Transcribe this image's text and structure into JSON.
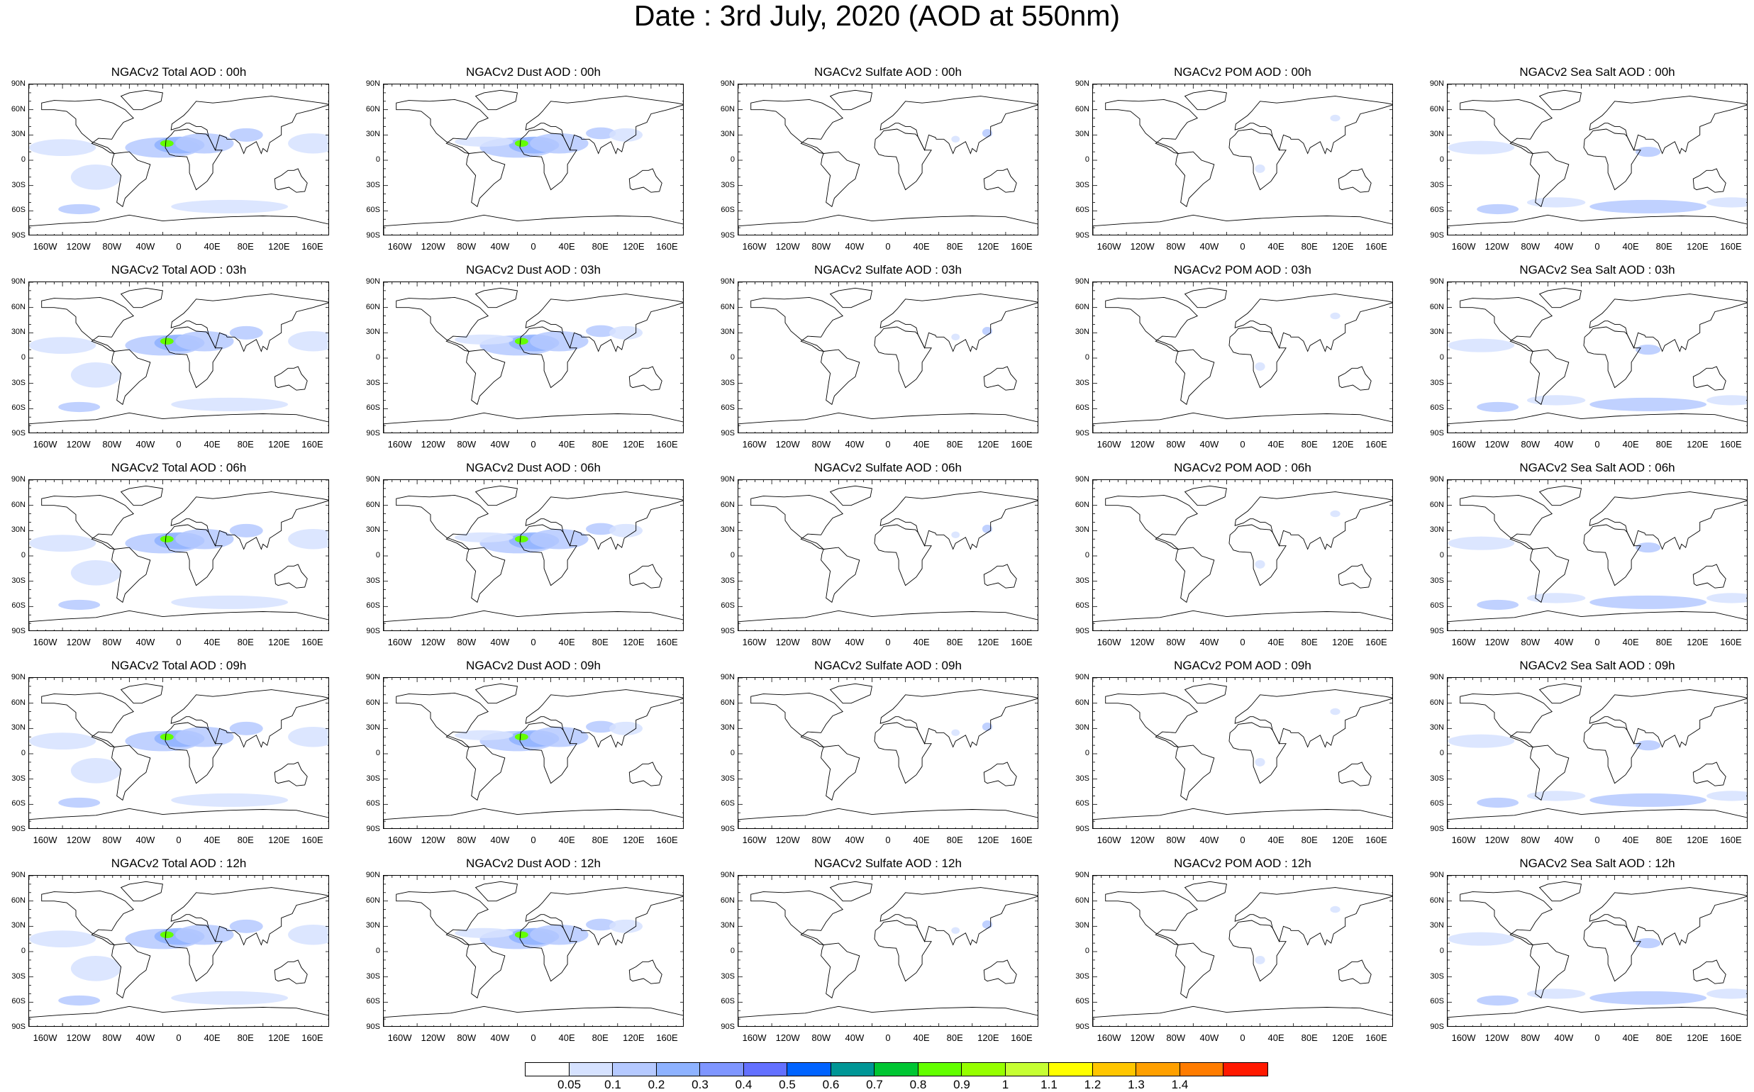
{
  "title": "Date : 3rd July, 2020 (AOD at 550nm)",
  "panels": [
    [
      "NGACv2 Total AOD : 00h",
      "NGACv2 Dust AOD : 00h",
      "NGACv2 Sulfate AOD : 00h",
      "NGACv2 POM AOD : 00h",
      "NGACv2 Sea Salt AOD : 00h"
    ],
    [
      "NGACv2 Total AOD : 03h",
      "NGACv2 Dust AOD : 03h",
      "NGACv2 Sulfate AOD : 03h",
      "NGACv2 POM AOD : 03h",
      "NGACv2 Sea Salt AOD : 03h"
    ],
    [
      "NGACv2 Total AOD : 06h",
      "NGACv2 Dust AOD : 06h",
      "NGACv2 Sulfate AOD : 06h",
      "NGACv2 POM AOD : 06h",
      "NGACv2 Sea Salt AOD : 06h"
    ],
    [
      "NGACv2 Total AOD : 09h",
      "NGACv2 Dust AOD : 09h",
      "NGACv2 Sulfate AOD : 09h",
      "NGACv2 POM AOD : 09h",
      "NGACv2 Sea Salt  AOD : 09h"
    ],
    [
      "NGACv2 Total AOD : 12h",
      "NGACv2 Dust AOD : 12h",
      "NGACv2 Sulfate AOD : 12h",
      "NGACv2 POM  AOD : 12h",
      "NGACv2 Sea Salt AOD : 12h"
    ]
  ],
  "lat_labels": [
    "90N",
    "60N",
    "30N",
    "0",
    "30S",
    "60S",
    "90S"
  ],
  "lon_labels": [
    "160W",
    "120W",
    "80W",
    "40W",
    "0",
    "40E",
    "80E",
    "120E",
    "160E"
  ],
  "colorbar": {
    "colors": [
      "#ffffff",
      "#d6e2ff",
      "#b5c9ff",
      "#8eb2ff",
      "#7f96ff",
      "#6370ff",
      "#0063ff",
      "#009696",
      "#00c633",
      "#63ff00",
      "#96ff00",
      "#c6ff33",
      "#ffff00",
      "#ffc600",
      "#ffa000",
      "#ff7c00",
      "#ff1900"
    ],
    "labels": [
      "0.05",
      "0.1",
      "0.2",
      "0.3",
      "0.4",
      "0.5",
      "0.6",
      "0.7",
      "0.8",
      "0.9",
      "1",
      "1.1",
      "1.2",
      "1.3",
      "1.4"
    ]
  },
  "species_colors": {
    "total": "#b5c9ff",
    "dust": "#8eb2ff",
    "sulfate": "#d6e2ff",
    "pom": "#d6e2ff",
    "seasalt": "#b5c9ff"
  }
}
